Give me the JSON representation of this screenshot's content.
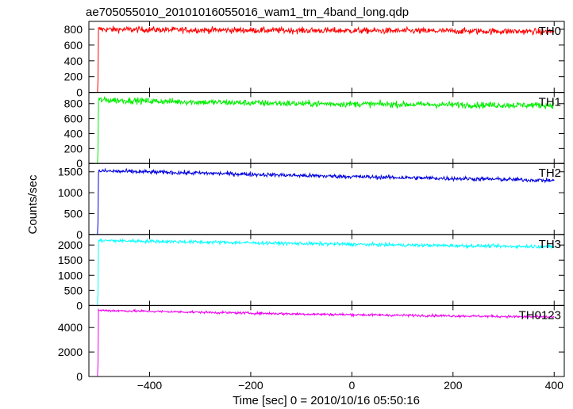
{
  "chart_data": {
    "type": "line",
    "title": "ae705055010_20101016055016_wam1_trn_4band_long.qdp",
    "xlabel": "Time [sec] 0 = 2010/10/16 05:50:16",
    "ylabel": "Counts/sec",
    "xlim": [
      -520,
      420
    ],
    "xticks": [
      -400,
      -200,
      0,
      200,
      400
    ],
    "xtick_labels": [
      "−400",
      "−200",
      "0",
      "200",
      "400"
    ],
    "onset_x": -503,
    "end_x": 400,
    "panels": [
      {
        "name": "TH0",
        "color": "#ff0000",
        "ylim": [
          0,
          900
        ],
        "yticks": [
          0,
          200,
          400,
          600,
          800
        ],
        "level_points": [
          [
            -500,
            800
          ],
          [
            -300,
            790
          ],
          [
            -100,
            785
          ],
          [
            100,
            780
          ],
          [
            300,
            775
          ],
          [
            400,
            770
          ]
        ],
        "noise": 28
      },
      {
        "name": "TH1",
        "color": "#00ee00",
        "ylim": [
          0,
          950
        ],
        "yticks": [
          0,
          200,
          400,
          600,
          800
        ],
        "level_points": [
          [
            -500,
            850
          ],
          [
            -300,
            820
          ],
          [
            -100,
            800
          ],
          [
            100,
            790
          ],
          [
            300,
            780
          ],
          [
            400,
            780
          ]
        ],
        "noise": 30
      },
      {
        "name": "TH2",
        "color": "#0000dd",
        "ylim": [
          0,
          1700
        ],
        "yticks": [
          0,
          500,
          1000,
          1500
        ],
        "level_points": [
          [
            -500,
            1520
          ],
          [
            -300,
            1470
          ],
          [
            -100,
            1410
          ],
          [
            100,
            1360
          ],
          [
            300,
            1320
          ],
          [
            400,
            1290
          ]
        ],
        "noise": 35
      },
      {
        "name": "TH3",
        "color": "#00ffff",
        "ylim": [
          0,
          2350
        ],
        "yticks": [
          0,
          500,
          1000,
          1500,
          2000
        ],
        "level_points": [
          [
            -500,
            2150
          ],
          [
            -300,
            2100
          ],
          [
            -100,
            2050
          ],
          [
            100,
            2000
          ],
          [
            300,
            1960
          ],
          [
            400,
            1950
          ]
        ],
        "noise": 40
      },
      {
        "name": "TH0123",
        "color": "#ee00ee",
        "ylim": [
          0,
          5800
        ],
        "yticks": [
          0,
          2000,
          4000
        ],
        "level_points": [
          [
            -500,
            5400
          ],
          [
            -300,
            5250
          ],
          [
            -100,
            5100
          ],
          [
            100,
            5000
          ],
          [
            300,
            4900
          ],
          [
            400,
            4850
          ]
        ],
        "noise": 70
      }
    ]
  }
}
